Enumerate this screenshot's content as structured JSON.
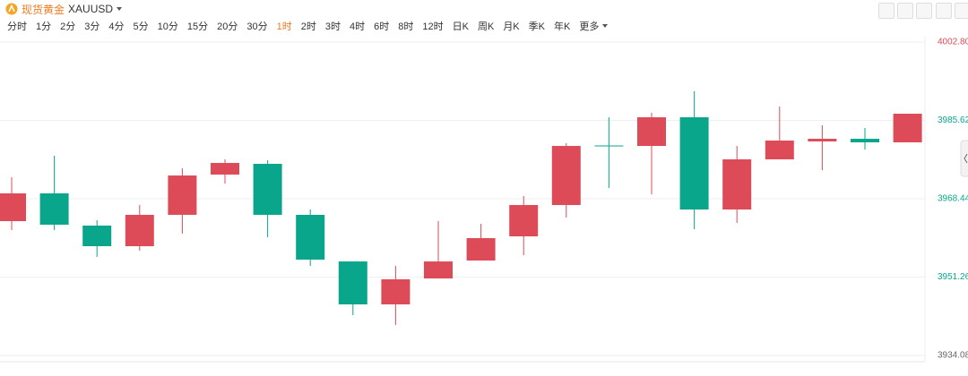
{
  "header": {
    "name": "现货黄金",
    "symbol": "XAUUSD"
  },
  "periods": [
    "分时",
    "1分",
    "2分",
    "3分",
    "4分",
    "5分",
    "10分",
    "15分",
    "20分",
    "30分",
    "1时",
    "2时",
    "3时",
    "4时",
    "6时",
    "8时",
    "12时",
    "日K",
    "周K",
    "月K",
    "季K",
    "年K",
    "更多"
  ],
  "selected_period_index": 10,
  "chart_data": {
    "type": "candlestick",
    "open": [
      3963.53,
      3969.62,
      3962.55,
      3958.03,
      3964.91,
      3973.74,
      3976.1,
      3964.91,
      3954.69,
      3945.27,
      3950.96,
      3954.89,
      3960.19,
      3967.06,
      3980.12,
      3980.02,
      3986.31,
      3966.08,
      3977.08,
      3981.01,
      3981.59,
      3980.81
    ],
    "high": [
      3973.15,
      3977.86,
      3963.73,
      3967.06,
      3975.11,
      3977.08,
      3976.88,
      3966.08,
      3954.69,
      3953.71,
      3963.53,
      3962.94,
      3969.03,
      3980.61,
      3986.31,
      3987.29,
      3992.0,
      3980.02,
      3988.66,
      3984.54,
      3983.95,
      3987.09
    ],
    "low": [
      3961.57,
      3961.57,
      3955.68,
      3957.05,
      3960.78,
      3971.78,
      3960.0,
      3953.71,
      3942.91,
      3940.75,
      3950.96,
      3954.89,
      3956.07,
      3964.32,
      3970.8,
      3969.42,
      3961.76,
      3963.14,
      3977.08,
      3974.72,
      3979.24,
      3980.81
    ],
    "close": [
      3969.62,
      3962.75,
      3958.03,
      3964.91,
      3973.54,
      3976.29,
      3964.91,
      3955.09,
      3945.27,
      3950.77,
      3954.69,
      3959.8,
      3967.06,
      3980.02,
      3980.02,
      3986.31,
      3966.08,
      3977.08,
      3981.2,
      3981.59,
      3980.81,
      3987.09
    ],
    "up_color": "#dd4b58",
    "down_color": "#0aa68b",
    "ylim": [
      3934.08,
      4002.8
    ],
    "yticks": [
      {
        "value": 4002.8,
        "label": "4002.80"
      },
      3985.62,
      3968.44,
      3951.26,
      3934.08
    ],
    "ytick_colors": [
      "#dd4b58",
      "#0aa68b",
      "#0aa68b",
      "#0aa68b",
      "#666666"
    ],
    "grid": true
  }
}
